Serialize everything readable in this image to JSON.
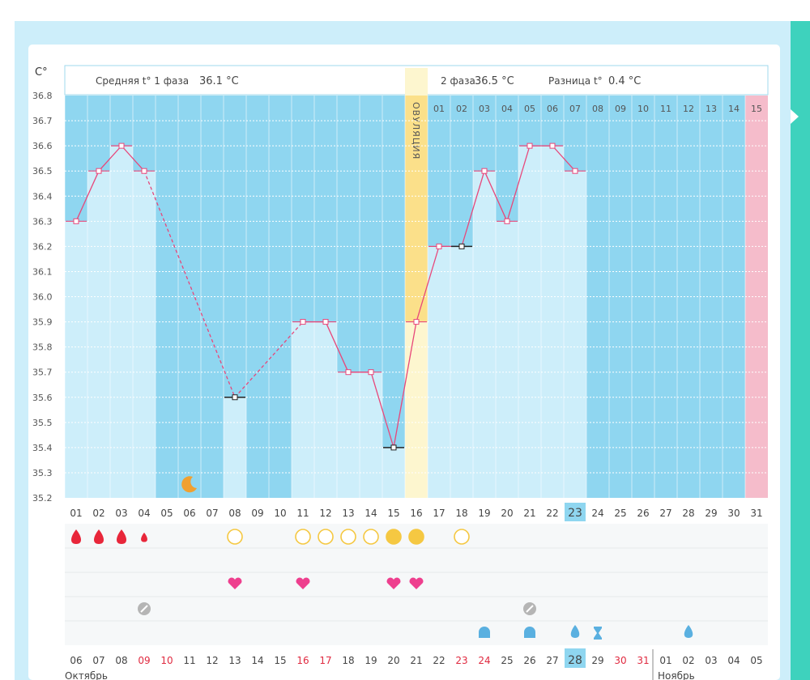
{
  "colors": {
    "phase_bg": "#8fd6f0",
    "bar": "#cdeefa",
    "ovulation": "#fbe08a",
    "ovulation_light": "#fdf6cf",
    "line": "#e8477a",
    "today": "#f5bccb",
    "drop_red": "#e8263a",
    "circle": "#f5c842",
    "heart": "#ee3f8e",
    "moon": "#f0a030",
    "blue_drop": "#5ab0e0"
  },
  "chart_data": {
    "type": "line",
    "unit_label": "C°",
    "ylim": [
      35.2,
      36.8
    ],
    "y_ticks": [
      "36.8",
      "36.7",
      "36.6",
      "36.5",
      "36.4",
      "36.3",
      "36.2",
      "36.1",
      "36.0",
      "35.9",
      "35.8",
      "35.7",
      "35.6",
      "35.5",
      "35.4",
      "35.3",
      "35.2"
    ],
    "cycle_days": [
      "01",
      "02",
      "03",
      "04",
      "05",
      "06",
      "07",
      "08",
      "09",
      "10",
      "11",
      "12",
      "13",
      "14",
      "15",
      "16",
      "17",
      "18",
      "19",
      "20",
      "21",
      "22",
      "23",
      "24",
      "25",
      "26",
      "27",
      "28",
      "29",
      "30",
      "31"
    ],
    "temperatures": [
      36.3,
      36.5,
      36.6,
      36.5,
      null,
      null,
      null,
      35.6,
      null,
      null,
      35.9,
      35.9,
      35.7,
      35.7,
      35.4,
      35.9,
      36.2,
      36.2,
      36.5,
      36.3,
      36.6,
      36.6,
      36.5,
      null,
      null,
      null,
      null,
      null,
      null,
      null,
      null
    ],
    "excluded_points": [
      8,
      15,
      18
    ],
    "interpolated_segments": [
      [
        4,
        8
      ],
      [
        8,
        11
      ]
    ],
    "phase1_avg_label": "Средняя t° 1 фаза",
    "phase1_avg_value": "36.1 °C",
    "phase2_label": "2 фаза",
    "phase2_value": "36.5 °C",
    "diff_label": "Разница t°",
    "diff_value": "0.4 °C",
    "ovulation_day": 16,
    "ovulation_label": "ОВУЛЯЦИЯ",
    "phase2_days": [
      "01",
      "02",
      "03",
      "04",
      "05",
      "06",
      "07",
      "08",
      "09",
      "10",
      "11",
      "12",
      "13",
      "14",
      "15"
    ],
    "today_day": 31,
    "highlighted_day": 23,
    "symptoms": {
      "bleeding": [
        [
          1,
          "big"
        ],
        [
          2,
          "big"
        ],
        [
          3,
          "big"
        ],
        [
          4,
          "small"
        ]
      ],
      "mucus_circles": [
        [
          8,
          "empty"
        ],
        [
          11,
          "empty"
        ],
        [
          12,
          "empty"
        ],
        [
          13,
          "empty"
        ],
        [
          14,
          "empty"
        ],
        [
          15,
          "full"
        ],
        [
          16,
          "full"
        ],
        [
          18,
          "empty"
        ]
      ],
      "moon": [
        6
      ],
      "hearts": [
        8,
        11,
        15,
        16
      ],
      "no_entry": [
        4,
        21
      ],
      "blue_marks": [
        [
          19,
          "round"
        ],
        [
          21,
          "round"
        ],
        [
          23,
          "drop"
        ],
        [
          24,
          "hourglass"
        ],
        [
          28,
          "drop"
        ]
      ]
    },
    "dates": [
      "06",
      "07",
      "08",
      "09",
      "10",
      "11",
      "12",
      "13",
      "14",
      "15",
      "16",
      "17",
      "18",
      "19",
      "20",
      "21",
      "22",
      "23",
      "24",
      "25",
      "26",
      "27",
      "28",
      "29",
      "30",
      "31",
      "01",
      "02",
      "03",
      "04",
      "05"
    ],
    "weekend_date_indices": [
      3,
      4,
      10,
      11,
      17,
      18,
      24,
      25
    ],
    "highlighted_date_index": 22,
    "month_labels": [
      "Октябрь",
      "Ноябрь"
    ]
  }
}
